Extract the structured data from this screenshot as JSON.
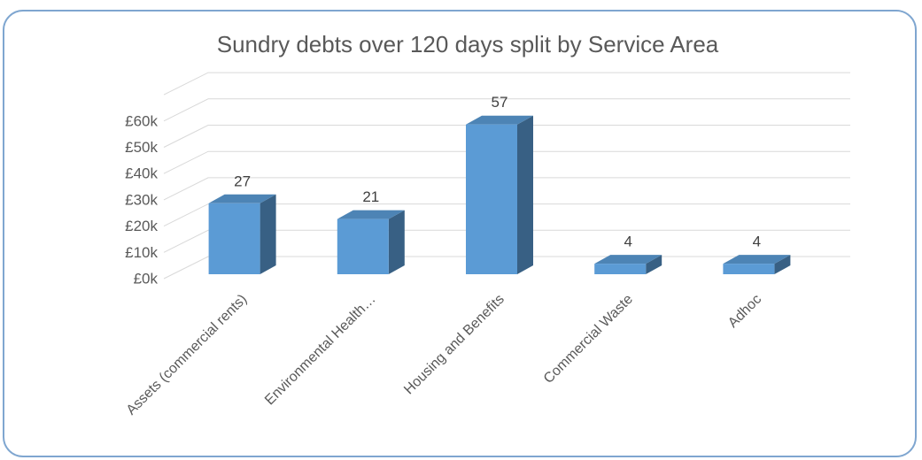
{
  "chart_data": {
    "type": "bar3d",
    "title": "Sundry debts over 120 days split by Service Area",
    "categories": [
      "Assets (commercial rents)",
      "Environmental Health…",
      "Housing and Benefits",
      "Commercial Waste",
      "Adhoc"
    ],
    "values": [
      27,
      21,
      57,
      4,
      4
    ],
    "color": "#5b9bd5",
    "ylim": [
      0,
      70
    ],
    "yticks": [
      {
        "value": 0,
        "label": "£0k"
      },
      {
        "value": 10,
        "label": "£10k"
      },
      {
        "value": 20,
        "label": "£20k"
      },
      {
        "value": 30,
        "label": "£30k"
      },
      {
        "value": 40,
        "label": "£40k"
      },
      {
        "value": 50,
        "label": "£50k"
      },
      {
        "value": 60,
        "label": "£60k"
      }
    ],
    "grid": true
  }
}
